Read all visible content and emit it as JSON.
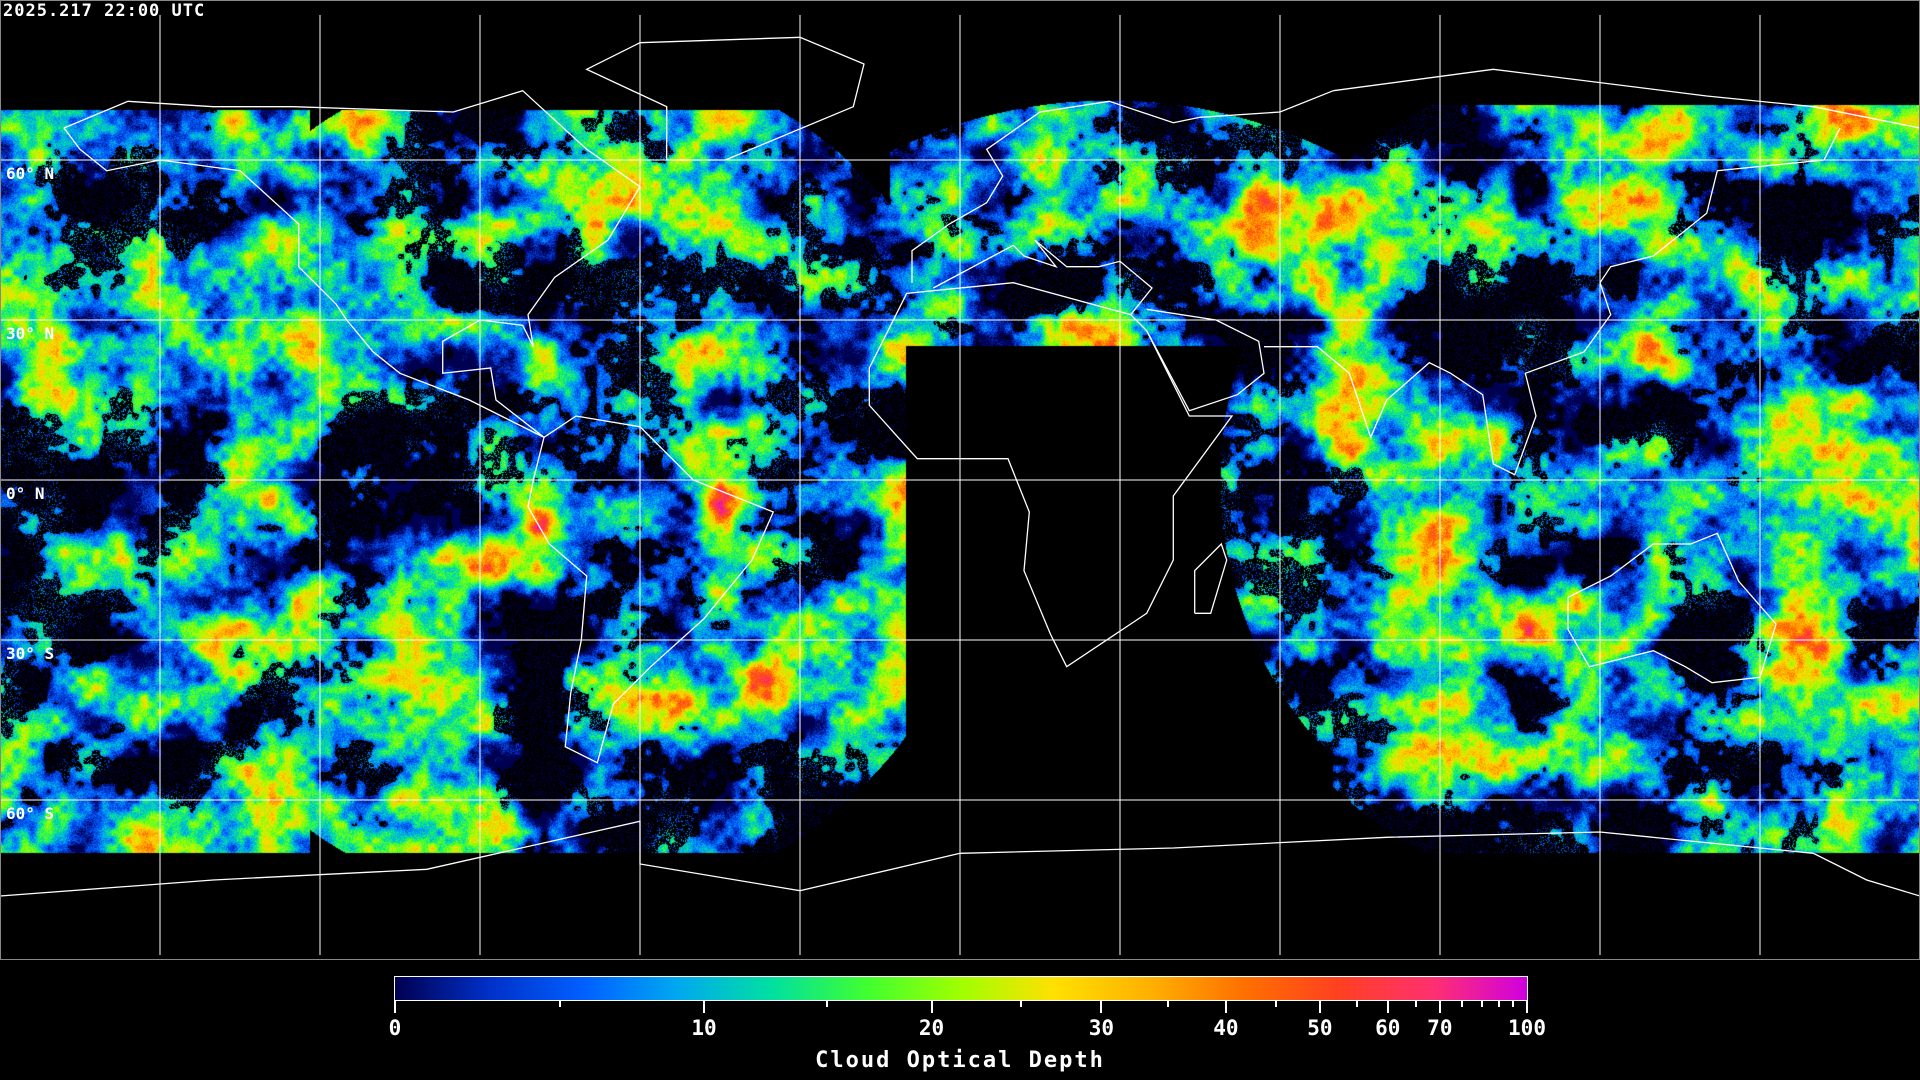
{
  "header": {
    "timestamp": "2025.217 22:00 UTC"
  },
  "map": {
    "projection": "equirectangular",
    "graticule_spacing_degrees": 30,
    "latitude_labels": [
      "60° N",
      "30° N",
      "0° N",
      "30° S",
      "60° S"
    ],
    "coastline_color": "#ffffff",
    "gridline_color": "#ffffff",
    "no_data_color": "#000000"
  },
  "colorbar": {
    "title": "Cloud Optical Depth",
    "min": 0,
    "max": 100,
    "tick_labels": [
      "0",
      "10",
      "20",
      "30",
      "40",
      "50",
      "60",
      "70",
      "100"
    ],
    "colors": [
      "#000050",
      "#0030c8",
      "#0060ff",
      "#00a8f0",
      "#00e0a0",
      "#40ff30",
      "#a0ff00",
      "#ffe000",
      "#ffb000",
      "#ff7000",
      "#ff4020",
      "#ff3070",
      "#d000e0"
    ]
  }
}
